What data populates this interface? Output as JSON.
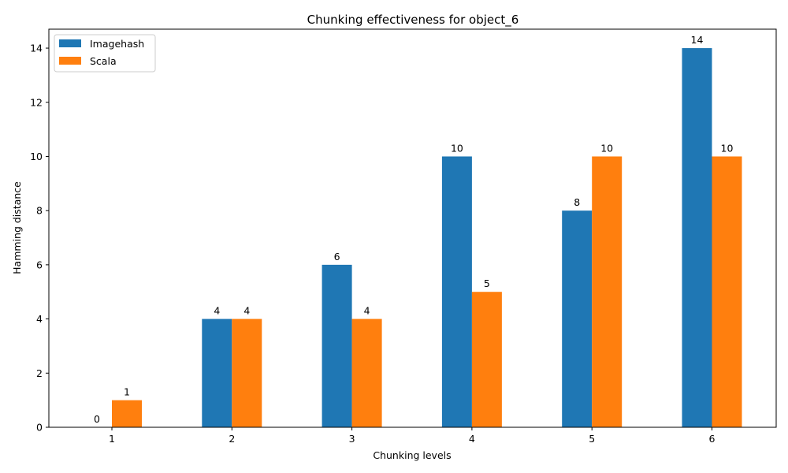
{
  "chart_data": {
    "type": "bar",
    "title": "Chunking effectiveness for object_6",
    "xlabel": "Chunking levels",
    "ylabel": "Hamming distance",
    "categories": [
      "1",
      "2",
      "3",
      "4",
      "5",
      "6"
    ],
    "series": [
      {
        "name": "Imagehash",
        "values": [
          0,
          4,
          6,
          10,
          8,
          14
        ],
        "color": "#1f77b4"
      },
      {
        "name": "Scala",
        "values": [
          1,
          4,
          4,
          5,
          10,
          10
        ],
        "color": "#ff7f0e"
      }
    ],
    "ylim": [
      0,
      14.7
    ],
    "yticks": [
      0,
      2,
      4,
      6,
      8,
      10,
      12,
      14
    ],
    "grid": false,
    "legend_position": "top-left"
  }
}
